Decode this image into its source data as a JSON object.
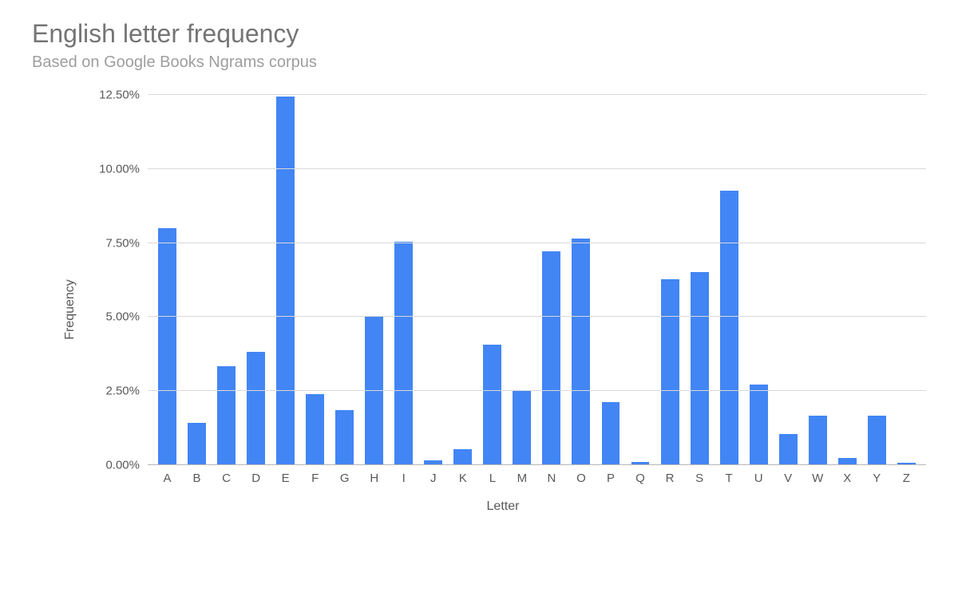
{
  "chart": {
    "type": "bar",
    "title": "English letter frequency",
    "title_fontsize": 32,
    "title_color": "#757575",
    "subtitle": "Based on Google Books Ngrams corpus",
    "subtitle_fontsize": 20,
    "subtitle_color": "#9e9e9e",
    "xlabel": "Letter",
    "ylabel": "Frequency",
    "axis_label_fontsize": 16,
    "axis_label_color": "#595959",
    "tick_fontsize": 15,
    "tick_color": "#595959",
    "background_color": "#ffffff",
    "grid_color": "#d9d9d9",
    "baseline_color": "#b7b7b7",
    "bar_color": "#4285f4",
    "bar_width": 0.62,
    "ylim": [
      0,
      12.8
    ],
    "yticks": [
      {
        "value": 0.0,
        "label": "0.00%"
      },
      {
        "value": 2.5,
        "label": "2.50%"
      },
      {
        "value": 5.0,
        "label": "5.00%"
      },
      {
        "value": 7.5,
        "label": "7.50%"
      },
      {
        "value": 10.0,
        "label": "10.00%"
      },
      {
        "value": 12.5,
        "label": "12.50%"
      }
    ],
    "categories": [
      "A",
      "B",
      "C",
      "D",
      "E",
      "F",
      "G",
      "H",
      "I",
      "J",
      "K",
      "L",
      "M",
      "N",
      "O",
      "P",
      "Q",
      "R",
      "S",
      "T",
      "U",
      "V",
      "W",
      "X",
      "Y",
      "Z"
    ],
    "values": [
      8.0,
      1.44,
      3.34,
      3.82,
      12.45,
      2.4,
      1.87,
      5.05,
      7.54,
      0.16,
      0.54,
      4.07,
      2.51,
      7.23,
      7.64,
      2.14,
      0.12,
      6.28,
      6.51,
      9.28,
      2.73,
      1.05,
      1.68,
      0.23,
      1.66,
      0.09
    ]
  }
}
